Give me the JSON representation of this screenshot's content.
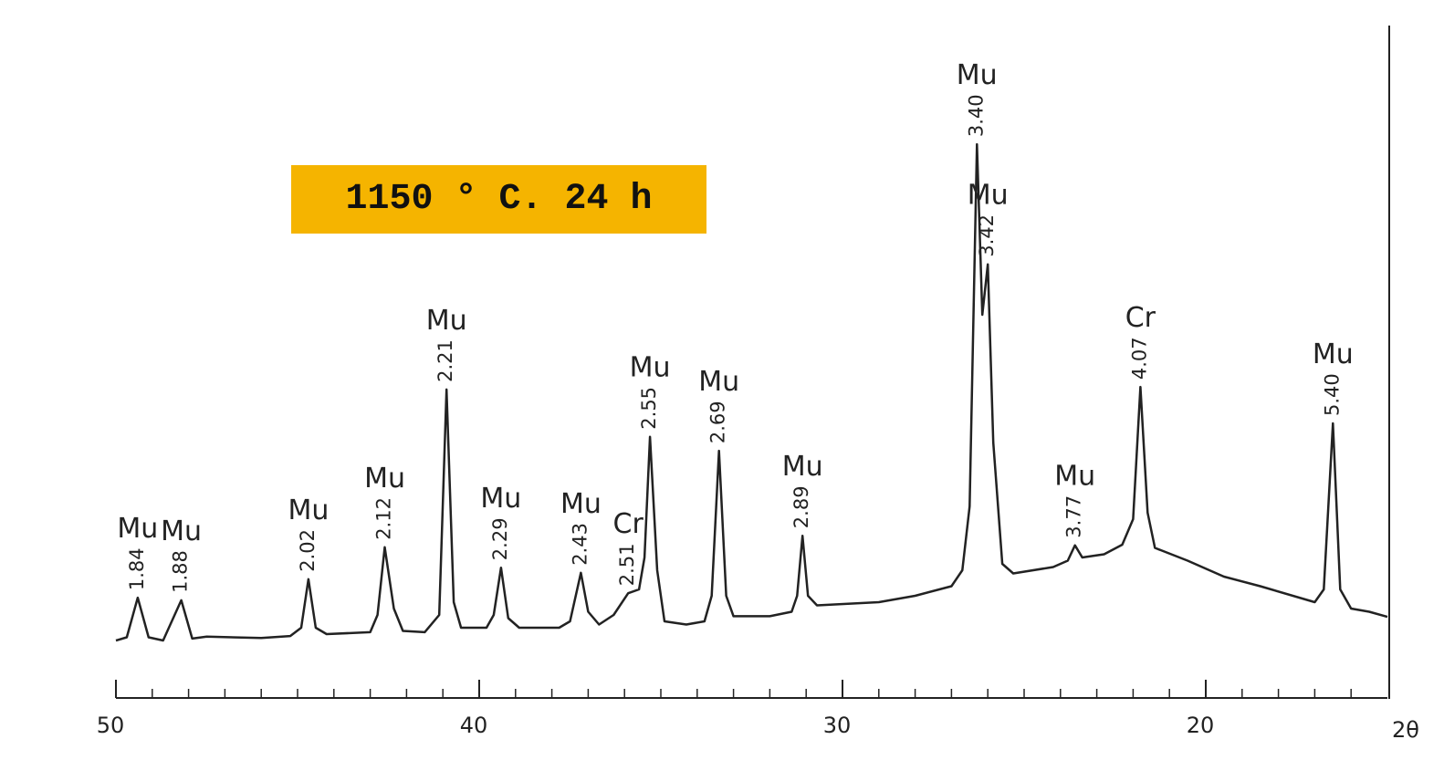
{
  "chart_data": {
    "type": "line",
    "title": "1150 ° C. 24 h",
    "x_label": "2θ",
    "xlim": [
      50,
      15
    ],
    "ylim": [
      0,
      100
    ],
    "xticks": [
      50,
      40,
      30,
      20
    ],
    "xticks_minor": [
      49,
      48,
      47,
      46,
      45,
      44,
      43,
      42,
      41,
      39,
      38,
      37,
      36,
      35,
      34,
      33,
      32,
      31,
      29,
      28,
      27,
      26,
      25,
      24,
      23,
      22,
      21,
      19,
      18,
      17,
      16
    ],
    "color": "#222222",
    "x": [
      50,
      49.7,
      49.4,
      49.1,
      48.7,
      48.2,
      47.9,
      47.5,
      46,
      45.2,
      44.9,
      44.7,
      44.5,
      44.2,
      43,
      42.8,
      42.6,
      42.35,
      42.1,
      41.5,
      41.1,
      40.9,
      40.7,
      40.5,
      39.8,
      39.6,
      39.4,
      39.2,
      38.9,
      37.8,
      37.5,
      37.2,
      37.0,
      36.7,
      36.3,
      35.9,
      35.6,
      35.45,
      35.3,
      35.1,
      34.9,
      34.3,
      33.8,
      33.6,
      33.4,
      33.2,
      33.0,
      32.0,
      31.4,
      31.25,
      31.1,
      30.95,
      30.7,
      29,
      28,
      27,
      26.7,
      26.5,
      26.3,
      26.15,
      26.0,
      25.85,
      25.6,
      25.3,
      24.2,
      23.8,
      23.6,
      23.4,
      22.8,
      22.3,
      22.0,
      21.8,
      21.6,
      21.4,
      20.5,
      19.5,
      18.5,
      17.0,
      16.75,
      16.5,
      16.3,
      16.0,
      15.5,
      15
    ],
    "values": [
      9.0,
      9.5,
      15.7,
      9.5,
      9.0,
      15.3,
      9.3,
      9.6,
      9.4,
      9.7,
      11,
      18.6,
      11,
      10,
      10.3,
      13,
      23.6,
      14,
      10.5,
      10.3,
      13,
      48.3,
      15,
      11,
      11,
      13,
      20.4,
      12.5,
      11,
      11,
      12,
      19.6,
      13.5,
      11.5,
      13,
      16.4,
      17,
      22,
      40.9,
      20,
      12,
      11.5,
      12,
      16,
      38.7,
      16,
      12.8,
      12.8,
      13.5,
      16,
      25.4,
      16,
      14.5,
      15,
      16,
      17.5,
      20,
      30,
      86.7,
      60,
      67.9,
      40,
      21,
      19.5,
      20.5,
      21.5,
      23.9,
      22,
      22.5,
      24,
      28,
      48.7,
      29,
      23.5,
      21.5,
      19,
      17.5,
      15,
      17,
      43,
      17,
      14,
      13.5,
      12.7
    ],
    "annotations": {
      "x": [
        49.4,
        48.2,
        44.7,
        42.6,
        40.9,
        39.4,
        37.2,
        35.9,
        35.3,
        33.4,
        31.1,
        26.3,
        26.0,
        23.6,
        21.8,
        16.5
      ],
      "phases": [
        "Mu",
        "Mu",
        "Mu",
        "Mu",
        "Mu",
        "Mu",
        "Mu",
        "Cr",
        "Mu",
        "Mu",
        "Mu",
        "Mu",
        "Mu",
        "Mu",
        "Cr",
        "Mu"
      ],
      "labels": [
        "1.84",
        "1.88",
        "2.02",
        "2.12",
        "2.21",
        "2.29",
        "2.43",
        "2.51",
        "2.55",
        "2.69",
        "2.89",
        "3.40",
        "3.42",
        "3.77",
        "4.07",
        "5.40"
      ]
    }
  }
}
